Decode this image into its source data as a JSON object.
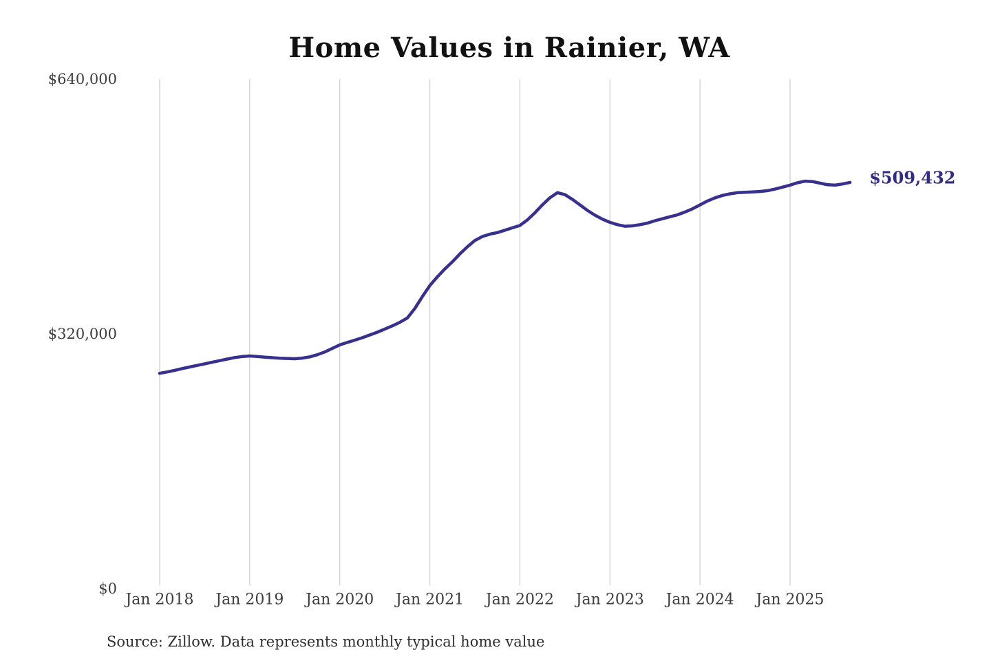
{
  "chart_data": {
    "type": "line",
    "title": "Home Values in Rainier, WA",
    "source": "Source: Zillow. Data represents monthly typical home value",
    "series_name": "Typical home value ($)",
    "x_frequency": "monthly",
    "x_range": [
      "Jan 2018",
      "Sep 2025"
    ],
    "x_tick_labels": [
      "Jan 2018",
      "Jan 2019",
      "Jan 2020",
      "Jan 2021",
      "Jan 2022",
      "Jan 2023",
      "Jan 2024",
      "Jan 2025"
    ],
    "y_tick_labels": [
      "$640,000",
      "$320,000",
      "$0"
    ],
    "ylim": [
      0,
      640000
    ],
    "grid": "vertical-only",
    "legend": "none",
    "end_label": "$509,432",
    "end_value": 509432,
    "line_color": "#37308e",
    "label_color": "#312b87",
    "grid_color": "#cccccc",
    "values": [
      268000,
      269800,
      271800,
      274000,
      276000,
      278000,
      280000,
      282000,
      284000,
      286000,
      288000,
      289300,
      290000,
      289300,
      288500,
      287800,
      287200,
      286800,
      286500,
      287300,
      288800,
      291500,
      295000,
      299500,
      304000,
      307000,
      310000,
      313000,
      316500,
      320000,
      324000,
      328000,
      332500,
      338000,
      350000,
      365000,
      379000,
      390000,
      400000,
      409000,
      419000,
      428000,
      436000,
      441000,
      444000,
      446000,
      449000,
      452000,
      455000,
      462000,
      471000,
      481000,
      490000,
      496500,
      494000,
      488000,
      481000,
      474000,
      468000,
      463000,
      459000,
      456000,
      454000,
      454500,
      456000,
      458000,
      461000,
      463500,
      466000,
      468500,
      472000,
      476000,
      481000,
      486000,
      490000,
      493000,
      495000,
      496500,
      497000,
      497500,
      498000,
      499000,
      501000,
      503500,
      506000,
      509000,
      511000,
      510500,
      508500,
      506500,
      506000,
      507500,
      509432
    ]
  }
}
